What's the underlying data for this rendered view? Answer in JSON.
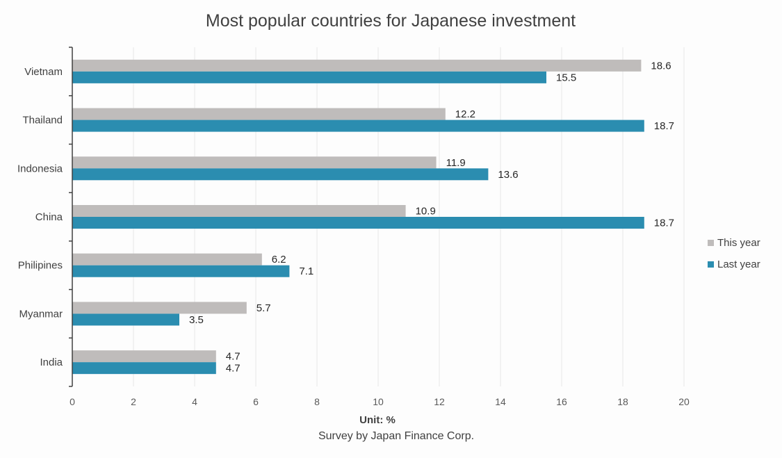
{
  "chart_data": {
    "type": "bar",
    "orientation": "horizontal",
    "title": "Most popular countries for Japanese investment",
    "xlabel": "Unit: %",
    "source": "Survey by Japan Finance Corp.",
    "categories": [
      "Vietnam",
      "Thailand",
      "Indonesia",
      "China",
      "Philipines",
      "Myanmar",
      "India"
    ],
    "series": [
      {
        "name": "This year",
        "color": "#bfbcbb",
        "values": [
          18.6,
          12.2,
          11.9,
          10.9,
          6.2,
          5.7,
          4.7
        ]
      },
      {
        "name": "Last year",
        "color": "#2b8db0",
        "values": [
          15.5,
          18.7,
          13.6,
          18.7,
          7.1,
          3.5,
          4.7
        ]
      }
    ],
    "xlim": [
      0,
      20
    ],
    "xticks": [
      0,
      2,
      4,
      6,
      8,
      10,
      12,
      14,
      16,
      18,
      20
    ],
    "grid": "vertical",
    "legend_position": "right"
  }
}
